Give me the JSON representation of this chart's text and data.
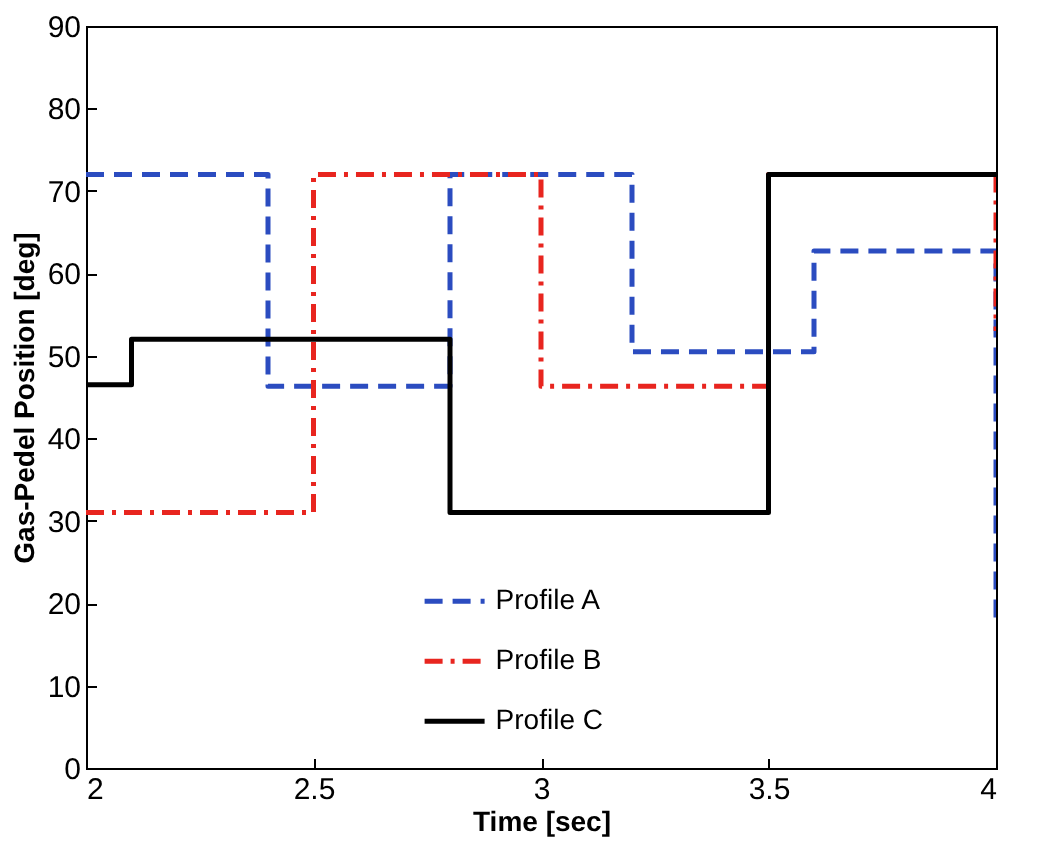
{
  "chart_data": {
    "type": "step",
    "xlabel": "Time [sec]",
    "ylabel": "Gas-Pedel Position [deg]",
    "xlim": [
      2,
      4
    ],
    "xticks": [
      2,
      2.5,
      3,
      3.5,
      4
    ],
    "ylim": [
      0,
      90
    ],
    "yticks": [
      0,
      10,
      20,
      30,
      40,
      50,
      60,
      70,
      80,
      90
    ],
    "grid": false,
    "legend": "bottom",
    "series": [
      {
        "name": "Profile A",
        "color": "#2b4cc0",
        "line_style": "dashed",
        "x": [
          2,
          2.4,
          2.8,
          3.2,
          3.6,
          4,
          4
        ],
        "values": [
          72,
          46.3,
          72,
          50.5,
          62.7,
          62.7,
          18
        ]
      },
      {
        "name": "Profile B",
        "color": "#e8251f",
        "line_style": "dashdot",
        "x": [
          2,
          2.5,
          3,
          3.5,
          4,
          4
        ],
        "values": [
          31,
          72,
          46.3,
          72,
          72,
          53
        ]
      },
      {
        "name": "Profile C",
        "color": "#000000",
        "line_style": "solid",
        "x": [
          2,
          2.1,
          2.8,
          3.5,
          4
        ],
        "values": [
          46.5,
          52,
          31,
          72,
          72
        ]
      }
    ]
  }
}
